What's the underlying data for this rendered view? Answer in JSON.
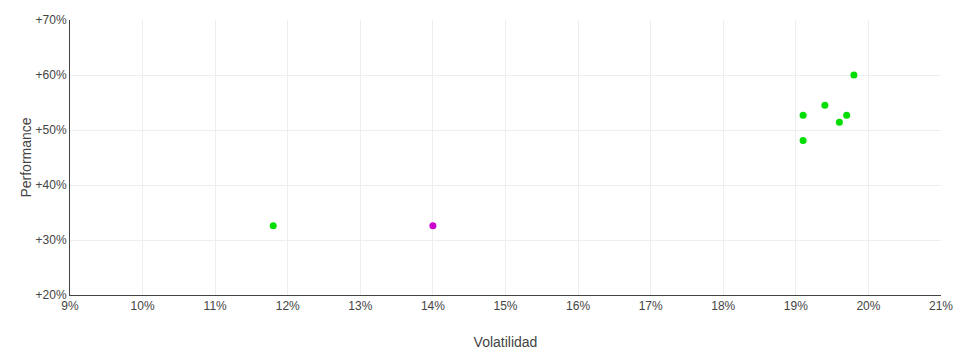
{
  "chart_data": {
    "type": "scatter",
    "xlabel": "Volatilidad",
    "ylabel": "Performance",
    "series": [
      {
        "color": "#00dd00",
        "x": [
          0.118,
          0.198,
          0.194,
          0.191,
          0.197,
          0.196,
          0.191
        ],
        "values": [
          0.326,
          0.6,
          0.545,
          0.527,
          0.527,
          0.514,
          0.481
        ]
      },
      {
        "color": "#cc00cc",
        "x": [
          0.14
        ],
        "values": [
          0.326
        ]
      }
    ],
    "xlim": [
      0.09,
      0.21
    ],
    "ylim": [
      0.2,
      0.7
    ],
    "xticks": [
      {
        "value": 0.09,
        "label": "9%"
      },
      {
        "value": 0.1,
        "label": "10%"
      },
      {
        "value": 0.11,
        "label": "11%"
      },
      {
        "value": 0.12,
        "label": "12%"
      },
      {
        "value": 0.13,
        "label": "13%"
      },
      {
        "value": 0.14,
        "label": "14%"
      },
      {
        "value": 0.15,
        "label": "15%"
      },
      {
        "value": 0.16,
        "label": "16%"
      },
      {
        "value": 0.17,
        "label": "17%"
      },
      {
        "value": 0.18,
        "label": "18%"
      },
      {
        "value": 0.19,
        "label": "19%"
      },
      {
        "value": 0.2,
        "label": "20%"
      },
      {
        "value": 0.21,
        "label": "21%"
      }
    ],
    "yticks": [
      {
        "value": 0.2,
        "label": "+20%"
      },
      {
        "value": 0.3,
        "label": "+30%"
      },
      {
        "value": 0.4,
        "label": "+40%"
      },
      {
        "value": 0.5,
        "label": "+50%"
      },
      {
        "value": 0.6,
        "label": "+60%"
      },
      {
        "value": 0.7,
        "label": "+70%"
      }
    ],
    "grid": true
  }
}
